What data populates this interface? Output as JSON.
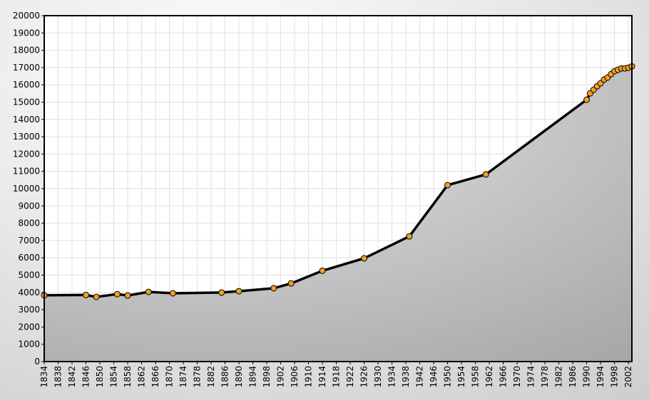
{
  "chart_data": {
    "type": "line",
    "x": [
      1834,
      1846,
      1849,
      1855,
      1858,
      1864,
      1871,
      1885,
      1890,
      1900,
      1905,
      1914,
      1926,
      1939,
      1950,
      1961,
      1990,
      1991,
      1992,
      1993,
      1994,
      1995,
      1996,
      1997,
      1998,
      1999,
      2000,
      2001,
      2002,
      2003
    ],
    "series": [
      {
        "color": "#000000",
        "marker_color": "#f0a020",
        "values": [
          3830,
          3850,
          3740,
          3900,
          3820,
          4030,
          3950,
          3990,
          4070,
          4240,
          4520,
          5250,
          5970,
          7240,
          10200,
          10820,
          15140,
          15510,
          15720,
          15920,
          16090,
          16300,
          16420,
          16620,
          16790,
          16870,
          16950,
          16950,
          16990,
          17070
        ]
      }
    ],
    "xlim": [
      1834,
      2003
    ],
    "xticks": [
      1834,
      1838,
      1842,
      1846,
      1850,
      1854,
      1858,
      1862,
      1866,
      1870,
      1874,
      1878,
      1882,
      1886,
      1890,
      1894,
      1898,
      1902,
      1906,
      1910,
      1914,
      1918,
      1922,
      1926,
      1930,
      1934,
      1938,
      1942,
      1946,
      1950,
      1954,
      1958,
      1962,
      1966,
      1970,
      1974,
      1978,
      1982,
      1986,
      1990,
      1994,
      1998,
      2002
    ],
    "ylim": [
      0,
      20000
    ],
    "yticks": [
      0,
      1000,
      2000,
      3000,
      4000,
      5000,
      6000,
      7000,
      8000,
      9000,
      10000,
      11000,
      12000,
      13000,
      14000,
      15000,
      16000,
      17000,
      18000,
      19000,
      20000
    ],
    "grid": true
  }
}
